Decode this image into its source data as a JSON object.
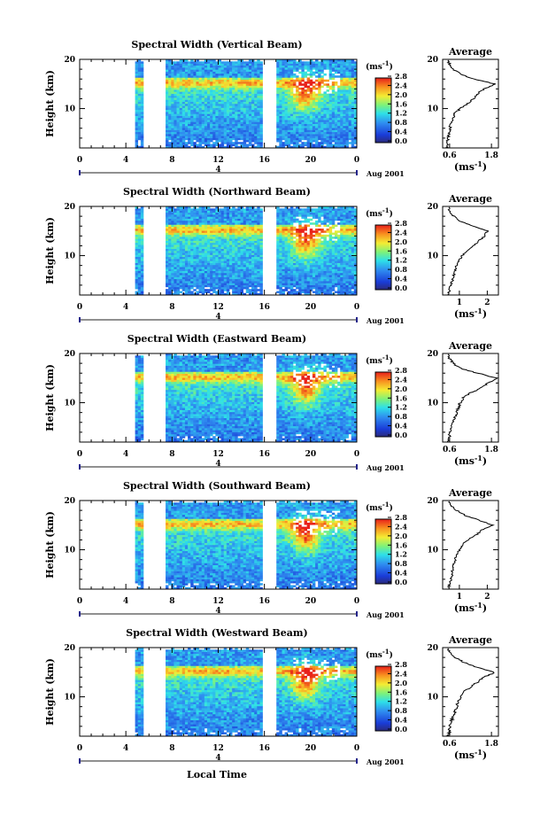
{
  "chart_data": [
    {
      "type": "heatmap",
      "title": "Spectral Width (Vertical Beam)",
      "ylabel": "Height (km)",
      "x_ticks": [
        "0",
        "4",
        "8",
        "12",
        "16",
        "20",
        "0"
      ],
      "y_ticks": [
        "20",
        "10"
      ],
      "date_label": "4",
      "date_suffix": "Aug 2001",
      "colorbar_unit": "(ms",
      "colorbar_exp": "-1",
      "colorbar_ticks": [
        "0.0",
        "0.4",
        "0.8",
        "1.2",
        "1.6",
        "2.0",
        "2.4",
        "2.8"
      ],
      "avg": {
        "title": "Average",
        "xlabel": "(ms",
        "xlabel_exp": "-1",
        "xlim": [
          0.4,
          2.0
        ],
        "x_ticks": [
          {
            "v": 0.6,
            "label": "0.6"
          },
          {
            "v": 1.8,
            "label": "1.8"
          }
        ],
        "height": [
          2,
          3,
          4,
          5,
          6,
          7,
          8,
          9,
          10,
          11,
          12,
          13,
          14,
          15,
          16,
          17,
          18,
          19,
          20
        ],
        "values": [
          0.5,
          0.55,
          0.55,
          0.6,
          0.6,
          0.65,
          0.7,
          0.75,
          0.9,
          1.1,
          1.3,
          1.4,
          1.6,
          1.9,
          1.3,
          0.9,
          0.7,
          0.6,
          0.55
        ]
      }
    },
    {
      "type": "heatmap",
      "title": "Spectral Width (Northward Beam)",
      "ylabel": "Height (km)",
      "x_ticks": [
        "0",
        "4",
        "8",
        "12",
        "16",
        "20",
        "0"
      ],
      "y_ticks": [
        "20",
        "10"
      ],
      "date_label": "4",
      "date_suffix": "Aug 2001",
      "colorbar_unit": "(ms",
      "colorbar_exp": "-1",
      "colorbar_ticks": [
        "0.0",
        "0.4",
        "0.8",
        "1.2",
        "1.6",
        "2.0",
        "2.4",
        "2.8"
      ],
      "avg": {
        "title": "Average",
        "xlabel": "(ms",
        "xlabel_exp": "-1",
        "xlim": [
          0.4,
          2.4
        ],
        "x_ticks": [
          {
            "v": 1,
            "label": "1"
          },
          {
            "v": 2,
            "label": "2"
          }
        ],
        "height": [
          2,
          3,
          4,
          5,
          6,
          7,
          8,
          9,
          10,
          11,
          12,
          13,
          14,
          15,
          16,
          17,
          18,
          19,
          20
        ],
        "values": [
          0.6,
          0.65,
          0.7,
          0.75,
          0.8,
          0.85,
          0.9,
          1.0,
          1.1,
          1.3,
          1.5,
          1.7,
          1.9,
          2.0,
          1.5,
          1.0,
          0.8,
          0.65,
          0.6
        ]
      }
    },
    {
      "type": "heatmap",
      "title": "Spectral Width (Eastward Beam)",
      "ylabel": "Height (km)",
      "x_ticks": [
        "0",
        "4",
        "8",
        "12",
        "16",
        "20",
        "0"
      ],
      "y_ticks": [
        "20",
        "10"
      ],
      "date_label": "4",
      "date_suffix": "Aug 2001",
      "colorbar_unit": "(ms",
      "colorbar_exp": "-1",
      "colorbar_ticks": [
        "0.0",
        "0.4",
        "0.8",
        "1.2",
        "1.6",
        "2.0",
        "2.4",
        "2.8"
      ],
      "avg": {
        "title": "Average",
        "xlabel": "(ms",
        "xlabel_exp": "-1",
        "xlim": [
          0.4,
          2.0
        ],
        "x_ticks": [
          {
            "v": 0.6,
            "label": "0.6"
          },
          {
            "v": 1.8,
            "label": "1.8"
          }
        ],
        "height": [
          2,
          3,
          4,
          5,
          6,
          7,
          8,
          9,
          10,
          11,
          12,
          13,
          14,
          15,
          16,
          17,
          18,
          19,
          20
        ],
        "values": [
          0.55,
          0.6,
          0.6,
          0.65,
          0.7,
          0.75,
          0.8,
          0.85,
          0.9,
          1.0,
          1.2,
          1.5,
          1.7,
          1.95,
          1.4,
          0.9,
          0.7,
          0.6,
          0.55
        ]
      }
    },
    {
      "type": "heatmap",
      "title": "Spectral Width (Southward Beam)",
      "ylabel": "Height (km)",
      "x_ticks": [
        "0",
        "4",
        "8",
        "12",
        "16",
        "20",
        "0"
      ],
      "y_ticks": [
        "20",
        "10"
      ],
      "date_label": "4",
      "date_suffix": "Aug 2001",
      "colorbar_unit": "(ms",
      "colorbar_exp": "-1",
      "colorbar_ticks": [
        "0.0",
        "0.4",
        "0.8",
        "1.2",
        "1.6",
        "2.0",
        "2.4",
        "2.8"
      ],
      "avg": {
        "title": "Average",
        "xlabel": "(ms",
        "xlabel_exp": "-1",
        "xlim": [
          0.4,
          2.4
        ],
        "x_ticks": [
          {
            "v": 1,
            "label": "1"
          },
          {
            "v": 2,
            "label": "2"
          }
        ],
        "height": [
          2,
          3,
          4,
          5,
          6,
          7,
          8,
          9,
          10,
          11,
          12,
          13,
          14,
          15,
          16,
          17,
          18,
          19,
          20
        ],
        "values": [
          0.6,
          0.65,
          0.7,
          0.75,
          0.75,
          0.8,
          0.85,
          0.9,
          1.0,
          1.1,
          1.3,
          1.6,
          1.8,
          2.2,
          1.7,
          1.2,
          0.9,
          0.7,
          0.6
        ]
      }
    },
    {
      "type": "heatmap",
      "title": "Spectral Width (Westward Beam)",
      "ylabel": "Height (km)",
      "x_ticks": [
        "0",
        "4",
        "8",
        "12",
        "16",
        "20",
        "0"
      ],
      "y_ticks": [
        "20",
        "10"
      ],
      "date_label": "4",
      "date_suffix": "Aug 2001",
      "colorbar_unit": "(ms",
      "colorbar_exp": "-1",
      "colorbar_ticks": [
        "0.0",
        "0.4",
        "0.8",
        "1.2",
        "1.6",
        "2.0",
        "2.4",
        "2.8"
      ],
      "avg": {
        "title": "Average",
        "xlabel": "(ms",
        "xlabel_exp": "-1",
        "xlim": [
          0.4,
          2.0
        ],
        "x_ticks": [
          {
            "v": 0.6,
            "label": "0.6"
          },
          {
            "v": 1.8,
            "label": "1.8"
          }
        ],
        "height": [
          2,
          3,
          4,
          5,
          6,
          7,
          8,
          9,
          10,
          11,
          12,
          13,
          14,
          15,
          16,
          17,
          18,
          19,
          20
        ],
        "values": [
          0.55,
          0.6,
          0.6,
          0.65,
          0.7,
          0.75,
          0.8,
          0.85,
          0.9,
          1.0,
          1.2,
          1.4,
          1.6,
          1.9,
          1.4,
          1.0,
          0.75,
          0.6,
          0.55
        ]
      }
    }
  ],
  "xlabel": "Local Time"
}
